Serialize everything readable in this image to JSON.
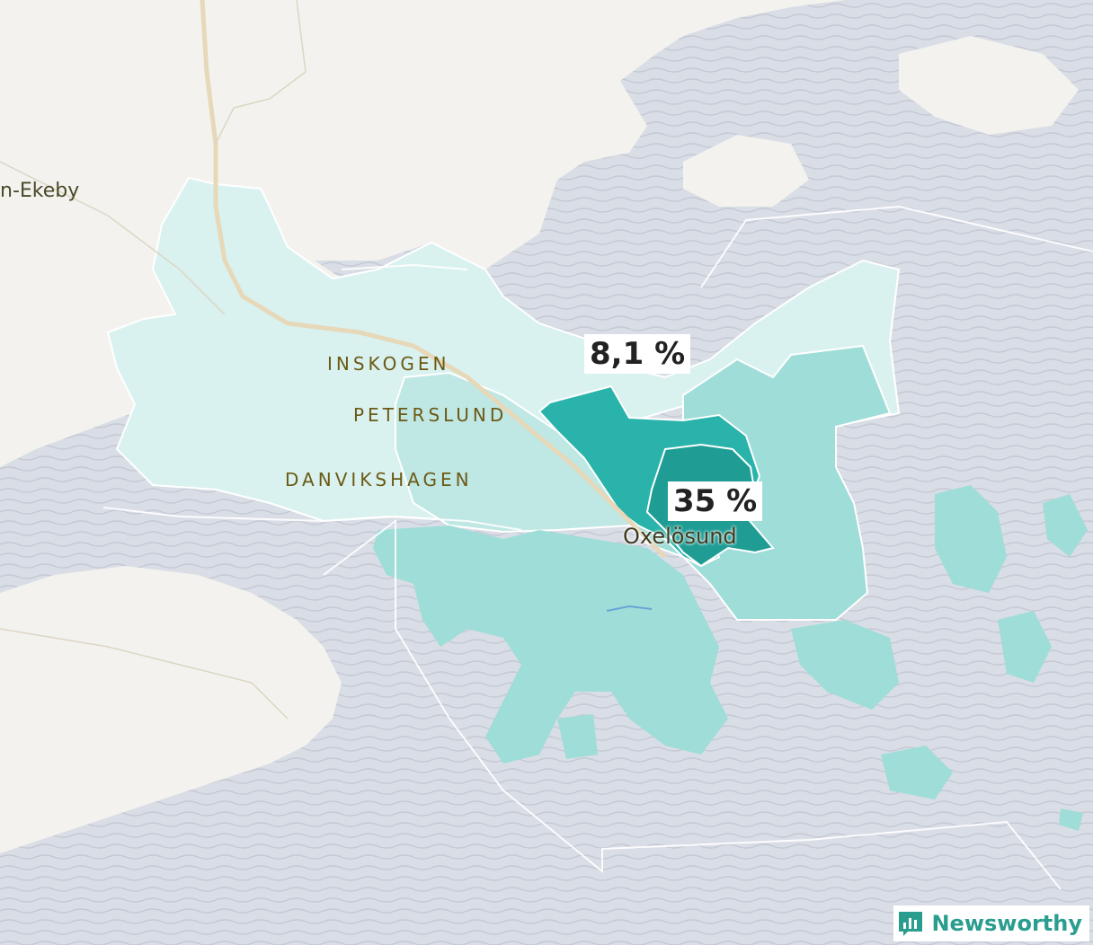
{
  "map": {
    "place_labels": {
      "ekeby": "n-Ekeby",
      "inskogen": "INSKOGEN",
      "peterslund": "PETERSLUND",
      "danvikshagen": "DANVIKSHAGEN",
      "oxelosund": "Oxelösund"
    },
    "regions": [
      {
        "name": "west-region",
        "value_label": "8,1 %"
      },
      {
        "name": "center-region",
        "value_label": "35 %"
      }
    ],
    "colors": {
      "land": "#f3f2ee",
      "water": "#d7dbe3",
      "water_wave": "#c3c8d3",
      "region_lightest": "#d9f2f0",
      "region_light": "#bfe7e4",
      "region_mid": "#9eddd8",
      "region_dark": "#2ab3aa",
      "region_darkest": "#1f9d95",
      "road": "#e6d8b8",
      "boundary": "#ffffff"
    }
  },
  "brand": {
    "name": "Newsworthy",
    "icon": "bar-chart-icon",
    "color": "#2a9d8f"
  }
}
